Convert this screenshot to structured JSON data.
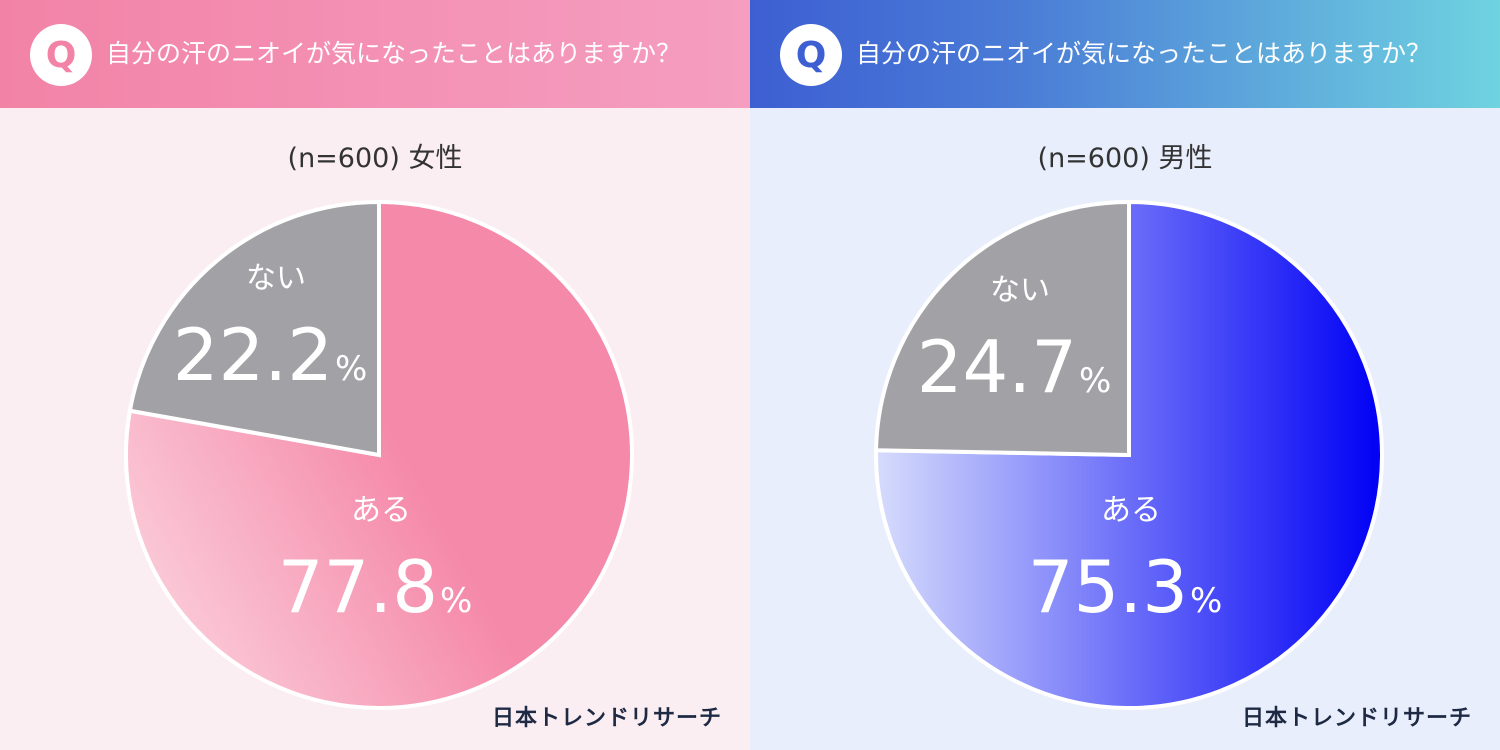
{
  "colors": {
    "female_accent": "#f283a7",
    "male_accent": "#3d5fd2",
    "no_slice": "#a2a2a6",
    "label_text": "#ffffff"
  },
  "chart_data": [
    {
      "type": "pie",
      "question": "自分の汗のニオイが気になったことはありますか？",
      "sample": "(n=600) 女性",
      "slices": [
        {
          "label": "ある",
          "value": 77.8,
          "display": "77.8"
        },
        {
          "label": "ない",
          "value": 22.2,
          "display": "22.2"
        }
      ],
      "unit": "%",
      "colors": {
        "ある": [
          "#fbd0dc",
          "#f589a9"
        ],
        "ない": "#a2a2a6"
      }
    },
    {
      "type": "pie",
      "question": "自分の汗のニオイが気になったことはありますか？",
      "sample": "(n=600) 男性",
      "slices": [
        {
          "label": "ある",
          "value": 75.3,
          "display": "75.3"
        },
        {
          "label": "ない",
          "value": 24.7,
          "display": "24.7"
        }
      ],
      "unit": "%",
      "colors": {
        "ある": [
          "#d6dcfc",
          "#0000f5"
        ],
        "ない": "#a2a2a6"
      }
    }
  ],
  "branding": {
    "logo_text_female": "日本トレンドリサーチ",
    "logo_text_male": "日本トレンドリサーチ"
  },
  "icons": {
    "question_badge": "Q"
  }
}
